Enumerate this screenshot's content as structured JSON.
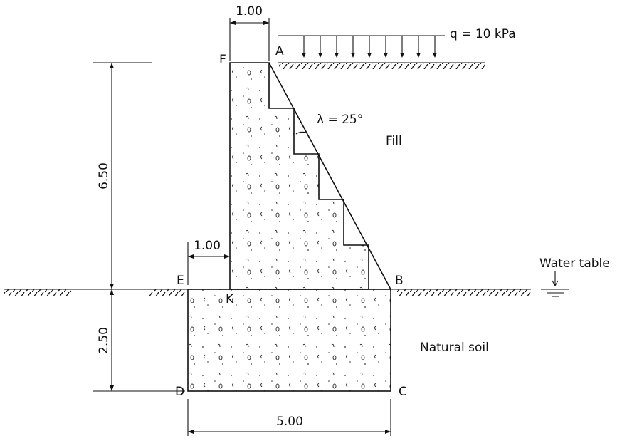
{
  "points": {
    "A": "A",
    "B": "B",
    "C": "C",
    "D": "D",
    "E": "E",
    "F": "F",
    "K": "K"
  },
  "dimensions": {
    "top_width": "1.00",
    "toe_width": "1.00",
    "wall_height": "6.50",
    "base_depth": "2.50",
    "base_width": "5.00"
  },
  "labels": {
    "surcharge": "q = 10 kPa",
    "angle": "λ = 25°",
    "fill": "Fill",
    "water_table": "Water table",
    "natural_soil": "Natural soil"
  }
}
